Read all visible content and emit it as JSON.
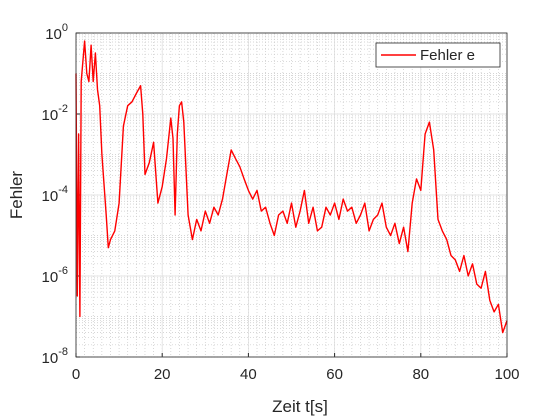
{
  "chart_data": {
    "type": "line",
    "xlabel": "Zeit t[s]",
    "ylabel": "Fehler",
    "log_y": true,
    "grid": true,
    "legend": "northeast",
    "xlim": [
      0,
      100
    ],
    "xticks": [
      0,
      20,
      40,
      60,
      80,
      100
    ],
    "ylim": [
      1e-08,
      1
    ],
    "yticks": [
      {
        "value": 1,
        "label": "10",
        "exponent": "0"
      },
      {
        "value": 0.01,
        "label": "10",
        "exponent": "-2"
      },
      {
        "value": 0.0001,
        "label": "10",
        "exponent": "-4"
      },
      {
        "value": 1e-06,
        "label": "10",
        "exponent": "-6"
      },
      {
        "value": 1e-08,
        "label": "10",
        "exponent": "-8"
      }
    ],
    "series": [
      {
        "name": "Fehler e",
        "color": "#ff0000",
        "x": [
          0,
          0.3,
          0.6,
          0.9,
          1.2,
          1.6,
          2,
          2.5,
          3,
          3.5,
          4,
          4.5,
          5,
          5.5,
          6,
          7,
          7.5,
          8,
          9,
          10,
          11,
          12,
          13,
          14,
          15,
          15.5,
          16,
          17,
          18,
          19,
          20,
          21,
          22,
          22.5,
          23,
          23.5,
          24,
          24.5,
          25,
          26,
          27,
          28,
          29,
          30,
          31,
          32,
          33,
          34,
          35,
          36,
          37,
          38,
          39,
          40,
          41,
          42,
          43,
          44,
          45,
          46,
          47,
          48,
          49,
          50,
          51,
          52,
          53,
          54,
          55,
          56,
          57,
          58,
          59,
          60,
          61,
          62,
          63,
          64,
          65,
          66,
          67,
          68,
          69,
          70,
          71,
          72,
          73,
          74,
          75,
          76,
          77,
          78,
          79,
          80,
          81,
          82,
          83,
          84,
          85,
          86,
          87,
          88,
          89,
          90,
          91,
          92,
          93,
          94,
          95,
          96,
          97,
          98,
          99,
          100
        ],
        "values": [
          0.1,
          3.2e-07,
          0.0032,
          1e-07,
          0.063,
          0.2,
          0.63,
          0.1,
          0.063,
          0.5,
          0.063,
          0.32,
          0.04,
          0.016,
          0.001,
          3.2e-05,
          5e-06,
          7.9e-06,
          1.3e-05,
          6.3e-05,
          0.005,
          0.016,
          0.02,
          0.032,
          0.05,
          0.01,
          0.00032,
          0.00063,
          0.002,
          6.3e-05,
          0.00016,
          0.00079,
          0.0079,
          0.0025,
          3.2e-05,
          0.0032,
          0.016,
          0.02,
          0.0063,
          3.2e-05,
          7.9e-06,
          2.5e-05,
          1.3e-05,
          4e-05,
          2e-05,
          5e-05,
          3.2e-05,
          7.9e-05,
          0.00032,
          0.0013,
          0.00079,
          0.0005,
          0.00025,
          0.00013,
          7.9e-05,
          0.00013,
          4e-05,
          5e-05,
          2e-05,
          1e-05,
          3.2e-05,
          4e-05,
          2e-05,
          6.3e-05,
          1.6e-05,
          4e-05,
          0.00013,
          2e-05,
          5e-05,
          1.3e-05,
          1.6e-05,
          5e-05,
          3.2e-05,
          6.3e-05,
          2.5e-05,
          7.9e-05,
          4e-05,
          5e-05,
          2e-05,
          3.2e-05,
          6.3e-05,
          1.3e-05,
          2.5e-05,
          3.2e-05,
          6.3e-05,
          1.6e-05,
          1e-05,
          2e-05,
          6.3e-06,
          1.6e-05,
          4e-06,
          6.3e-05,
          0.00025,
          0.00013,
          0.0032,
          0.0063,
          0.0013,
          2.5e-05,
          1.3e-05,
          7.9e-06,
          3.2e-06,
          2.5e-06,
          1.3e-06,
          3.2e-06,
          1e-06,
          2e-06,
          6.3e-07,
          5e-07,
          1.3e-06,
          2.5e-07,
          1.3e-07,
          2e-07,
          4e-08,
          7.9e-08
        ]
      }
    ]
  }
}
